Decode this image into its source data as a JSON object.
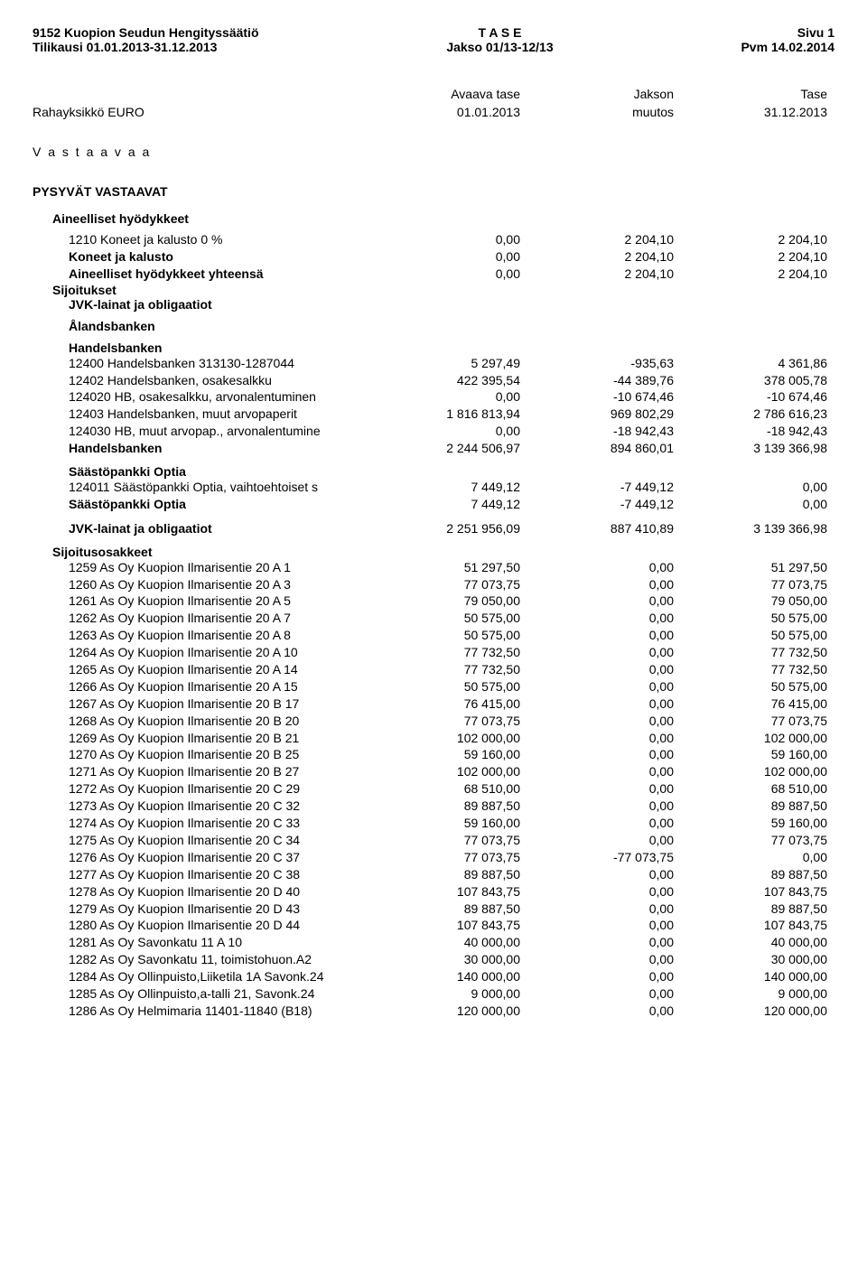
{
  "header": {
    "org": "9152 Kuopion Seudun Hengityssäätiö",
    "period": "Tilikausi 01.01.2013-31.12.2013",
    "title": "T A S E",
    "range": "Jakso 01/13-12/13",
    "page": "Sivu 1",
    "date": "Pvm 14.02.2014"
  },
  "columns": {
    "unit": "Rahayksikkö EURO",
    "c1a": "Avaava tase",
    "c1b": "01.01.2013",
    "c2a": "Jakson",
    "c2b": "muutos",
    "c3a": "Tase",
    "c3b": "31.12.2013"
  },
  "section_vastaavaa": "V a s t a a v a a",
  "pysyvat": "PYSYVÄT VASTAAVAT",
  "aineelliset": {
    "title": "Aineelliset hyödykkeet",
    "rows": [
      {
        "name": "1210 Koneet ja kalusto 0 %",
        "a": "0,00",
        "b": "2 204,10",
        "c": "2 204,10"
      },
      {
        "name": "Koneet ja kalusto",
        "a": "0,00",
        "b": "2 204,10",
        "c": "2 204,10",
        "bold": true
      },
      {
        "name": "Aineelliset hyödykkeet yhteensä",
        "a": "0,00",
        "b": "2 204,10",
        "c": "2 204,10",
        "bold": true
      }
    ]
  },
  "sijoitukset": "Sijoitukset",
  "jvk_title": "JVK-lainat ja obligaatiot",
  "alandsbanken": "Ålandsbanken",
  "handelsbanken": {
    "title": "Handelsbanken",
    "rows": [
      {
        "name": "12400 Handelsbanken 313130-1287044",
        "a": "5 297,49",
        "b": "-935,63",
        "c": "4 361,86"
      },
      {
        "name": "12402 Handelsbanken, osakesalkku",
        "a": "422 395,54",
        "b": "-44 389,76",
        "c": "378 005,78"
      },
      {
        "name": "124020 HB, osakesalkku, arvonalentuminen",
        "a": "0,00",
        "b": "-10 674,46",
        "c": "-10 674,46"
      },
      {
        "name": "12403 Handelsbanken, muut arvopaperit",
        "a": "1 816 813,94",
        "b": "969 802,29",
        "c": "2 786 616,23"
      },
      {
        "name": "124030 HB, muut arvopap., arvonalentumine",
        "a": "0,00",
        "b": "-18 942,43",
        "c": "-18 942,43"
      }
    ],
    "total": {
      "name": "Handelsbanken",
      "a": "2 244 506,97",
      "b": "894 860,01",
      "c": "3 139 366,98"
    }
  },
  "optia": {
    "title": "Säästöpankki Optia",
    "rows": [
      {
        "name": "124011 Säästöpankki Optia, vaihtoehtoiset s",
        "a": "7 449,12",
        "b": "-7 449,12",
        "c": "0,00"
      }
    ],
    "total": {
      "name": "Säästöpankki Optia",
      "a": "7 449,12",
      "b": "-7 449,12",
      "c": "0,00"
    }
  },
  "jvk_total": {
    "name": "JVK-lainat ja obligaatiot",
    "a": "2 251 956,09",
    "b": "887 410,89",
    "c": "3 139 366,98"
  },
  "sijoitusosakkeet": {
    "title": "Sijoitusosakkeet",
    "rows": [
      {
        "name": "1259 As Oy Kuopion Ilmarisentie 20 A 1",
        "a": "51 297,50",
        "b": "0,00",
        "c": "51 297,50"
      },
      {
        "name": "1260 As Oy Kuopion Ilmarisentie 20 A 3",
        "a": "77 073,75",
        "b": "0,00",
        "c": "77 073,75"
      },
      {
        "name": "1261 As Oy Kuopion Ilmarisentie 20 A 5",
        "a": "79 050,00",
        "b": "0,00",
        "c": "79 050,00"
      },
      {
        "name": "1262 As Oy Kuopion Ilmarisentie 20 A 7",
        "a": "50 575,00",
        "b": "0,00",
        "c": "50 575,00"
      },
      {
        "name": "1263 As Oy Kuopion Ilmarisentie 20 A 8",
        "a": "50 575,00",
        "b": "0,00",
        "c": "50 575,00"
      },
      {
        "name": "1264 As Oy Kuopion Ilmarisentie 20 A 10",
        "a": "77 732,50",
        "b": "0,00",
        "c": "77 732,50"
      },
      {
        "name": "1265 As Oy Kuopion Ilmarisentie 20 A 14",
        "a": "77 732,50",
        "b": "0,00",
        "c": "77 732,50"
      },
      {
        "name": "1266 As Oy Kuopion Ilmarisentie 20 A 15",
        "a": "50 575,00",
        "b": "0,00",
        "c": "50 575,00"
      },
      {
        "name": "1267 As Oy Kuopion Ilmarisentie 20 B 17",
        "a": "76 415,00",
        "b": "0,00",
        "c": "76 415,00"
      },
      {
        "name": "1268 As Oy Kuopion Ilmarisentie 20 B 20",
        "a": "77 073,75",
        "b": "0,00",
        "c": "77 073,75"
      },
      {
        "name": "1269 As Oy Kuopion Ilmarisentie 20 B 21",
        "a": "102 000,00",
        "b": "0,00",
        "c": "102 000,00"
      },
      {
        "name": "1270 As Oy Kuopion Ilmarisentie 20 B 25",
        "a": "59 160,00",
        "b": "0,00",
        "c": "59 160,00"
      },
      {
        "name": "1271 As Oy Kuopion Ilmarisentie 20 B 27",
        "a": "102 000,00",
        "b": "0,00",
        "c": "102 000,00"
      },
      {
        "name": "1272 As Oy Kuopion Ilmarisentie 20 C 29",
        "a": "68 510,00",
        "b": "0,00",
        "c": "68 510,00"
      },
      {
        "name": "1273 As Oy Kuopion Ilmarisentie 20 C 32",
        "a": "89 887,50",
        "b": "0,00",
        "c": "89 887,50"
      },
      {
        "name": "1274 As Oy Kuopion Ilmarisentie 20 C 33",
        "a": "59 160,00",
        "b": "0,00",
        "c": "59 160,00"
      },
      {
        "name": "1275 As Oy Kuopion Ilmarisentie 20 C 34",
        "a": "77 073,75",
        "b": "0,00",
        "c": "77 073,75"
      },
      {
        "name": "1276 As Oy Kuopion Ilmarisentie 20 C 37",
        "a": "77 073,75",
        "b": "-77 073,75",
        "c": "0,00"
      },
      {
        "name": "1277 As Oy Kuopion Ilmarisentie 20 C 38",
        "a": "89 887,50",
        "b": "0,00",
        "c": "89 887,50"
      },
      {
        "name": "1278 As Oy Kuopion Ilmarisentie 20 D 40",
        "a": "107 843,75",
        "b": "0,00",
        "c": "107 843,75"
      },
      {
        "name": "1279 As Oy Kuopion Ilmarisentie 20 D 43",
        "a": "89 887,50",
        "b": "0,00",
        "c": "89 887,50"
      },
      {
        "name": "1280 As Oy Kuopion Ilmarisentie 20 D 44",
        "a": "107 843,75",
        "b": "0,00",
        "c": "107 843,75"
      },
      {
        "name": "1281 As Oy Savonkatu 11 A 10",
        "a": "40 000,00",
        "b": "0,00",
        "c": "40 000,00"
      },
      {
        "name": "1282 As Oy Savonkatu 11, toimistohuon.A2",
        "a": "30 000,00",
        "b": "0,00",
        "c": "30 000,00"
      },
      {
        "name": "1284 As Oy Ollinpuisto,Liiketila 1A Savonk.24",
        "a": "140 000,00",
        "b": "0,00",
        "c": "140 000,00"
      },
      {
        "name": "1285 As Oy Ollinpuisto,a-talli 21, Savonk.24",
        "a": "9 000,00",
        "b": "0,00",
        "c": "9 000,00"
      },
      {
        "name": "1286 As Oy Helmimaria 11401-11840 (B18)",
        "a": "120 000,00",
        "b": "0,00",
        "c": "120 000,00"
      }
    ]
  }
}
